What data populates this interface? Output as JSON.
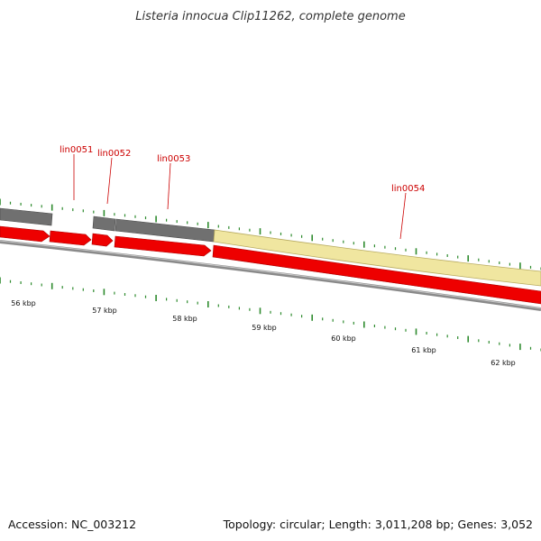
{
  "title": "Listeria innocua Clip11262, complete genome",
  "footer": {
    "accession": "Accession: NC_003212",
    "stats": "Topology: circular; Length: 3,011,208 bp; Genes: 3,052"
  },
  "map": {
    "genes": [
      {
        "id": "lin0051"
      },
      {
        "id": "lin0052"
      },
      {
        "id": "lin0053"
      },
      {
        "id": "lin0054"
      }
    ],
    "scale_labels": [
      "56 kbp",
      "57 kbp",
      "58 kbp",
      "59 kbp",
      "60 kbp",
      "61 kbp",
      "62 kbp"
    ]
  },
  "colors": {
    "cds": "#ee0000",
    "feature_grey": "#707070",
    "feature_yellow": "#f0e6a0",
    "backbone": "#8a8a8a",
    "label": "#cc0000",
    "tick": "#2e8b2e"
  }
}
